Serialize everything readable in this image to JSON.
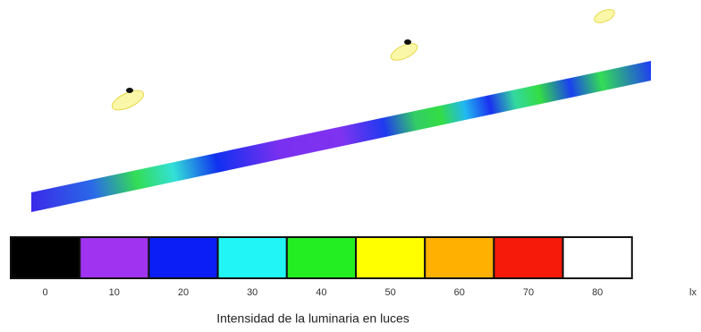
{
  "legend": {
    "items": [
      {
        "label": "0",
        "color": "#000000"
      },
      {
        "label": "10",
        "color": "#a033f0"
      },
      {
        "label": "20",
        "color": "#0a1ef5"
      },
      {
        "label": "30",
        "color": "#22f5f5"
      },
      {
        "label": "40",
        "color": "#22ee22"
      },
      {
        "label": "50",
        "color": "#ffff00"
      },
      {
        "label": "60",
        "color": "#ffb000"
      },
      {
        "label": "70",
        "color": "#f51a0a"
      },
      {
        "label": "80",
        "color": "#ffffff"
      }
    ],
    "unit": "lx",
    "caption": "Intensidad de la luminaria en luces"
  }
}
